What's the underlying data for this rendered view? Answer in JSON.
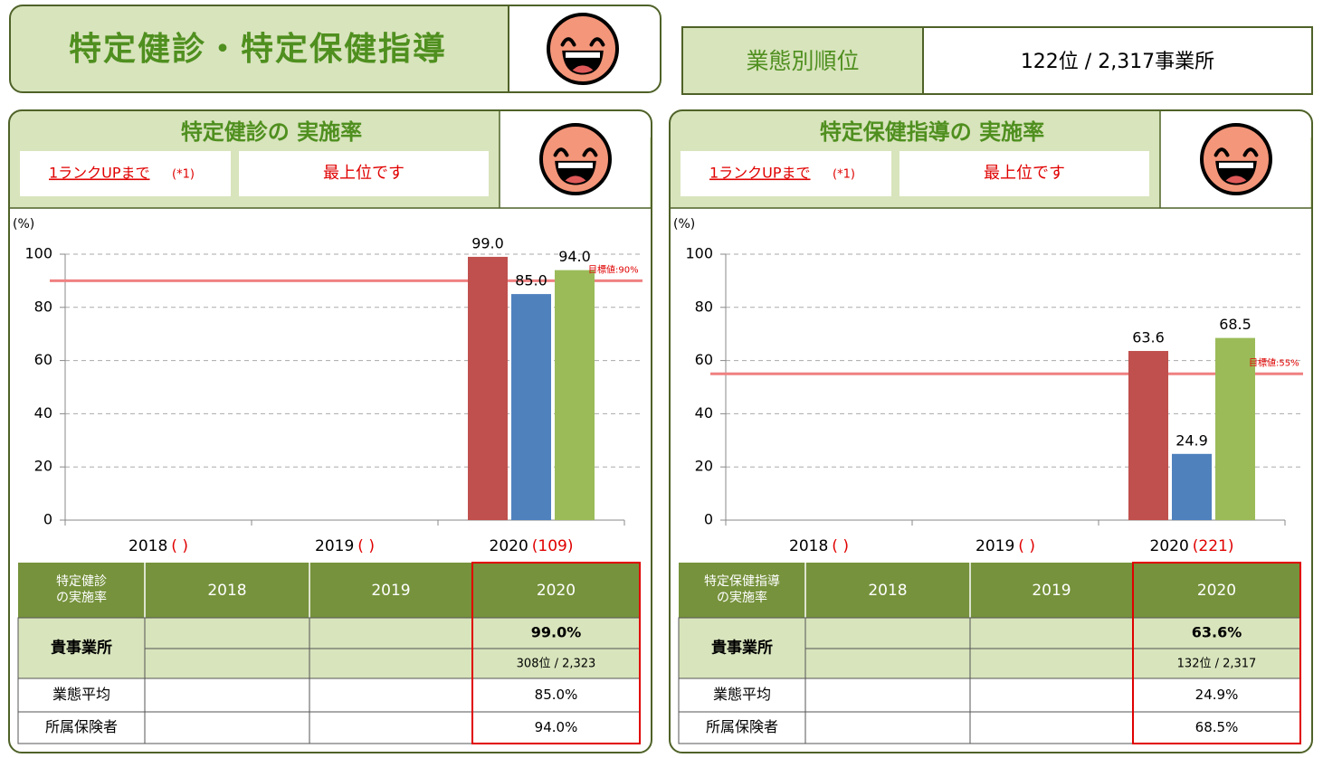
{
  "header": {
    "title": "特定健診・特定保健指導",
    "rank_label": "業態別順位",
    "rank_value": "122位 / 2,317事業所"
  },
  "panels": [
    {
      "title": "特定健診の 実施率",
      "rank_up_label": "1ランクUPまで",
      "rank_up_note": "(*1)",
      "rank_up_value": "最上位です",
      "table": {
        "header": [
          [
            "特定健診",
            "の実施率"
          ],
          "2018",
          "2019",
          "2020"
        ],
        "rows": [
          {
            "label": "貴事業所",
            "values": [
              null,
              null,
              "99.0%"
            ],
            "ranks": [
              null,
              null,
              "308位 / 2,323"
            ]
          },
          {
            "label": "業態平均",
            "values": [
              null,
              null,
              "85.0%"
            ]
          },
          {
            "label": "所属保険者",
            "values": [
              null,
              null,
              "94.0%"
            ]
          }
        ]
      }
    },
    {
      "title": "特定保健指導の 実施率",
      "rank_up_label": "1ランクUPまで",
      "rank_up_note": "(*1)",
      "rank_up_value": "最上位です",
      "table": {
        "header": [
          [
            "特定保健指導",
            "の実施率"
          ],
          "2018",
          "2019",
          "2020"
        ],
        "rows": [
          {
            "label": "貴事業所",
            "values": [
              null,
              null,
              "63.6%"
            ],
            "ranks": [
              null,
              null,
              "132位 / 2,317"
            ]
          },
          {
            "label": "業態平均",
            "values": [
              null,
              null,
              "24.9%"
            ]
          },
          {
            "label": "所属保険者",
            "values": [
              null,
              null,
              "68.5%"
            ]
          }
        ]
      }
    }
  ],
  "chart_data": [
    {
      "type": "bar",
      "y_label": "(%)",
      "categories": [
        "2018",
        "2019",
        "2020"
      ],
      "category_notes": [
        "( )",
        "( )",
        "(109)"
      ],
      "series": [
        {
          "color": "#c0504d",
          "values": [
            null,
            null,
            99.0
          ],
          "value_labels": [
            null,
            null,
            "99.0"
          ]
        },
        {
          "color": "#4f81bd",
          "values": [
            null,
            null,
            85.0
          ],
          "value_labels": [
            null,
            null,
            "85.0"
          ]
        },
        {
          "color": "#9bbb59",
          "values": [
            null,
            null,
            94.0
          ],
          "value_labels": [
            null,
            null,
            "94.0"
          ]
        }
      ],
      "ylim": [
        0,
        100
      ],
      "yticks": [
        0,
        20,
        40,
        60,
        80,
        100
      ],
      "grid": true,
      "target": {
        "value": 90,
        "label": "目標値:90%",
        "color": "#f08080"
      }
    },
    {
      "type": "bar",
      "y_label": "(%)",
      "categories": [
        "2018",
        "2019",
        "2020"
      ],
      "category_notes": [
        "( )",
        "( )",
        "(221)"
      ],
      "series": [
        {
          "color": "#c0504d",
          "values": [
            null,
            null,
            63.6
          ],
          "value_labels": [
            null,
            null,
            "63.6"
          ]
        },
        {
          "color": "#4f81bd",
          "values": [
            null,
            null,
            24.9
          ],
          "value_labels": [
            null,
            null,
            "24.9"
          ]
        },
        {
          "color": "#9bbb59",
          "values": [
            null,
            null,
            68.5
          ],
          "value_labels": [
            null,
            null,
            "68.5"
          ]
        }
      ],
      "ylim": [
        0,
        100
      ],
      "yticks": [
        0,
        20,
        40,
        60,
        80,
        100
      ],
      "grid": true,
      "target": {
        "value": 55,
        "label": "目標値:55%",
        "color": "#f08080"
      }
    }
  ]
}
